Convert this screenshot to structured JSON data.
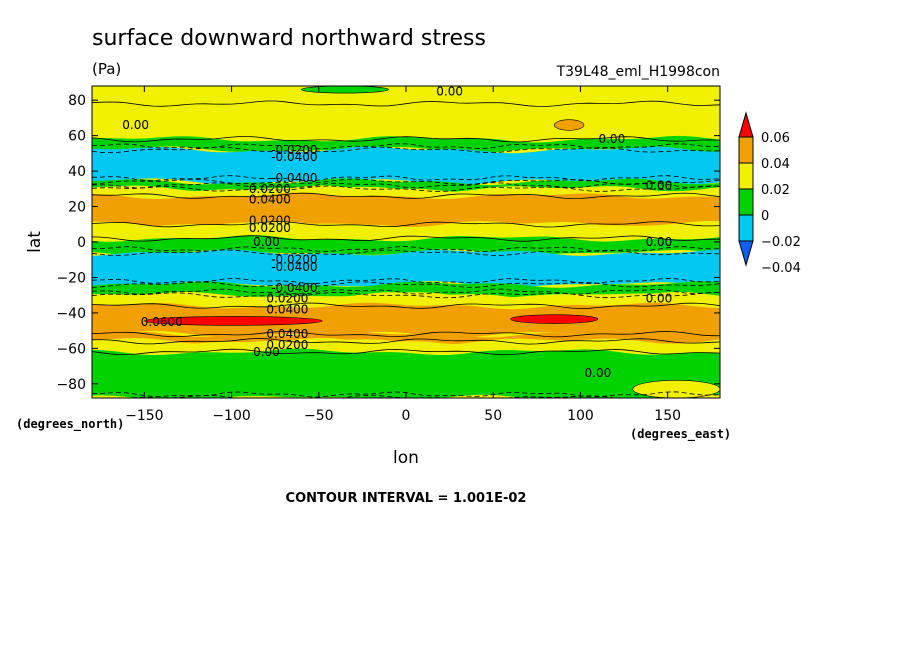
{
  "chart_data": {
    "type": "heatmap",
    "title": "surface downward northward stress",
    "units_label": "(Pa)",
    "run_label": "T39L48_eml_H1998con",
    "xlabel": "lon",
    "ylabel": "lat",
    "x_units_label": "(degrees_east)",
    "y_units_label": "(degrees_north)",
    "xlim": [
      -180,
      180
    ],
    "ylim": [
      -88,
      88
    ],
    "x_ticks": [
      -150,
      -100,
      -50,
      0,
      50,
      100,
      150
    ],
    "y_ticks": [
      -80,
      -60,
      -40,
      -20,
      0,
      20,
      40,
      60,
      80
    ],
    "x_tick_labels": [
      "−150",
      "−100",
      "−50",
      "0",
      "50",
      "100",
      "150"
    ],
    "y_tick_labels": [
      "−80",
      "−60",
      "−40",
      "−20",
      "0",
      "20",
      "40",
      "60",
      "80"
    ],
    "colorbar": {
      "levels": [
        -0.04,
        -0.02,
        0,
        0.02,
        0.04,
        0.06
      ],
      "labels": [
        "−0.04",
        "−0.02",
        "0",
        "0.02",
        "0.04",
        "0.06"
      ],
      "colors": [
        "#0c5ff0",
        "#00c8f0",
        "#00d200",
        "#f0f000",
        "#f0a000",
        "#ff0000"
      ],
      "extend": "both"
    },
    "zonal_bands": [
      {
        "lat_from": 78,
        "lat_to": 88,
        "value": 0.0
      },
      {
        "lat_from": 58,
        "lat_to": 78,
        "value": 0.005
      },
      {
        "lat_from": 52,
        "lat_to": 58,
        "value": -0.01
      },
      {
        "lat_from": 34,
        "lat_to": 52,
        "value": -0.03
      },
      {
        "lat_from": 30,
        "lat_to": 34,
        "value": -0.01
      },
      {
        "lat_from": 26,
        "lat_to": 30,
        "value": 0.01
      },
      {
        "lat_from": 10,
        "lat_to": 26,
        "value": 0.03
      },
      {
        "lat_from": 2,
        "lat_to": 10,
        "value": 0.01
      },
      {
        "lat_from": -6,
        "lat_to": 2,
        "value": -0.01
      },
      {
        "lat_from": -24,
        "lat_to": -6,
        "value": -0.03
      },
      {
        "lat_from": -30,
        "lat_to": -24,
        "value": -0.01
      },
      {
        "lat_from": -36,
        "lat_to": -30,
        "value": 0.01
      },
      {
        "lat_from": -52,
        "lat_to": -36,
        "value": 0.03
      },
      {
        "lat_from": -56,
        "lat_to": -52,
        "value": 0.02
      },
      {
        "lat_from": -62,
        "lat_to": -56,
        "value": 0.005
      },
      {
        "lat_from": -88,
        "lat_to": -62,
        "value": -0.01
      }
    ],
    "highlights": [
      {
        "lon_from": -150,
        "lon_to": -48,
        "lat_from": -47,
        "lat_to": -42,
        "value": 0.065
      },
      {
        "lon_from": 60,
        "lon_to": 110,
        "lat_from": -46,
        "lat_to": -41,
        "value": 0.065
      },
      {
        "lon_from": 85,
        "lon_to": 102,
        "lat_from": 63,
        "lat_to": 69,
        "value": 0.03
      },
      {
        "lon_from": 130,
        "lon_to": 180,
        "lat_from": -88,
        "lat_to": -78,
        "value": 0.005
      },
      {
        "lon_from": -60,
        "lon_to": -10,
        "lat_from": 84,
        "lat_to": 88,
        "value": -0.01
      }
    ],
    "contour_labels": [
      {
        "text": "0.00",
        "lon": 25,
        "lat": 85
      },
      {
        "text": "0.00",
        "lon": -155,
        "lat": 66
      },
      {
        "text": "0.00",
        "lon": 118,
        "lat": 58
      },
      {
        "text": "-0.0200",
        "lon": -64,
        "lat": 52
      },
      {
        "text": "-0.0400",
        "lon": -64,
        "lat": 48
      },
      {
        "text": "0.00",
        "lon": 145,
        "lat": 32
      },
      {
        "text": "-0.0400",
        "lon": -64,
        "lat": 36
      },
      {
        "text": "0.0200",
        "lon": -78,
        "lat": 30
      },
      {
        "text": "0.0400",
        "lon": -78,
        "lat": 24
      },
      {
        "text": "0.0200",
        "lon": -78,
        "lat": 12
      },
      {
        "text": "0.0200",
        "lon": -78,
        "lat": 8
      },
      {
        "text": "0.00",
        "lon": -80,
        "lat": 0
      },
      {
        "text": "0.00",
        "lon": 145,
        "lat": 0
      },
      {
        "text": "-0.0200",
        "lon": -64,
        "lat": -10
      },
      {
        "text": "-0.0400",
        "lon": -64,
        "lat": -14
      },
      {
        "text": "-0.0400",
        "lon": -64,
        "lat": -26
      },
      {
        "text": "0.0200",
        "lon": -68,
        "lat": -32
      },
      {
        "text": "0.00",
        "lon": 145,
        "lat": -32
      },
      {
        "text": "0.0400",
        "lon": -68,
        "lat": -38
      },
      {
        "text": "0.0600",
        "lon": -140,
        "lat": -45
      },
      {
        "text": "0.0400",
        "lon": -68,
        "lat": -52
      },
      {
        "text": "0.0200",
        "lon": -68,
        "lat": -58
      },
      {
        "text": "0.00",
        "lon": -80,
        "lat": -62
      },
      {
        "text": "0.00",
        "lon": 110,
        "lat": -74
      }
    ]
  },
  "footer": {
    "contour_interval": "CONTOUR INTERVAL = 1.001E-02"
  }
}
